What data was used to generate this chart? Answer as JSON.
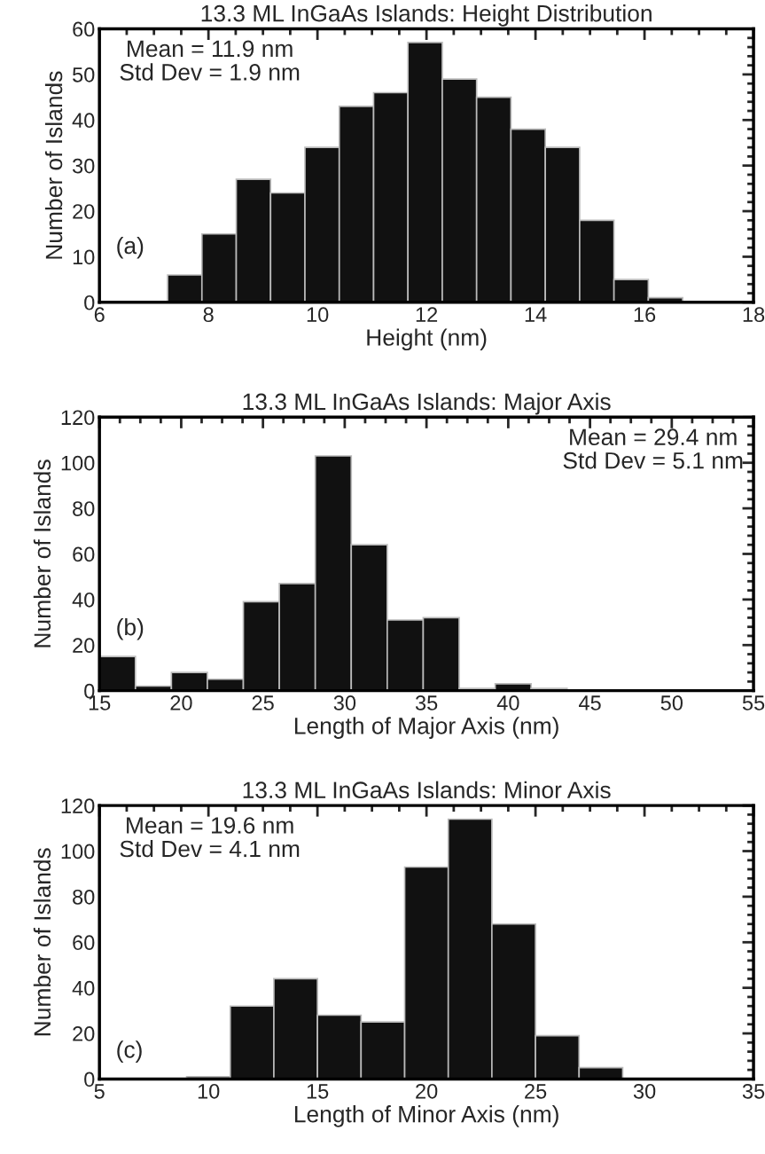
{
  "chart_data": [
    {
      "type": "histogram",
      "title": "13.3 ML InGaAs Islands: Height Distribution",
      "xlabel": "Height (nm)",
      "ylabel": "Number of Islands",
      "bins": [
        7.25,
        7.88,
        8.51,
        9.14,
        9.77,
        10.4,
        11.03,
        11.66,
        12.29,
        12.92,
        13.55,
        14.18,
        14.81,
        15.44,
        16.07,
        16.7
      ],
      "values": [
        6,
        15,
        27,
        24,
        34,
        43,
        46,
        57,
        49,
        45,
        38,
        34,
        18,
        5,
        1
      ],
      "color": "#111111",
      "xlim": [
        6,
        18
      ],
      "xticks": [
        6,
        8,
        10,
        12,
        14,
        16,
        18
      ],
      "ylim": [
        0,
        60
      ],
      "yticks": [
        0,
        10,
        20,
        30,
        40,
        50,
        60
      ],
      "annotations": [
        "Mean = 11.9 nm\nStd Dev = 1.9 nm",
        "(a)"
      ]
    },
    {
      "type": "histogram",
      "title": "13.3 ML InGaAs Islands: Major Axis",
      "xlabel": "Length of Major Axis (nm)",
      "ylabel": "Number of Islands",
      "bins": [
        15,
        17.2,
        19.4,
        21.6,
        23.8,
        26.0,
        28.2,
        30.4,
        32.6,
        34.8,
        37.0,
        39.2,
        41.4,
        43.6
      ],
      "values": [
        15,
        2,
        8,
        5,
        39,
        47,
        103,
        64,
        31,
        32,
        1,
        3,
        1
      ],
      "color": "#111111",
      "xlim": [
        15,
        55
      ],
      "xticks": [
        15,
        20,
        25,
        30,
        35,
        40,
        45,
        50,
        55
      ],
      "ylim": [
        0,
        120
      ],
      "yticks": [
        0,
        20,
        40,
        60,
        80,
        100,
        120
      ],
      "annotations": [
        "Mean = 29.4 nm\nStd Dev = 5.1 nm",
        "(b)"
      ]
    },
    {
      "type": "histogram",
      "title": "13.3 ML InGaAs Islands: Minor Axis",
      "xlabel": "Length of Minor Axis (nm)",
      "ylabel": "Number of Islands",
      "bins": [
        9,
        11,
        13,
        15,
        17,
        19,
        21,
        23,
        25,
        27,
        29
      ],
      "values": [
        1,
        32,
        44,
        28,
        25,
        93,
        114,
        68,
        19,
        5
      ],
      "color": "#111111",
      "xlim": [
        5,
        35
      ],
      "xticks": [
        5,
        10,
        15,
        20,
        25,
        30,
        35
      ],
      "ylim": [
        0,
        120
      ],
      "yticks": [
        0,
        20,
        40,
        60,
        80,
        100,
        120
      ],
      "annotations": [
        "Mean = 19.6 nm\nStd Dev = 4.1 nm",
        "(c)"
      ]
    }
  ]
}
